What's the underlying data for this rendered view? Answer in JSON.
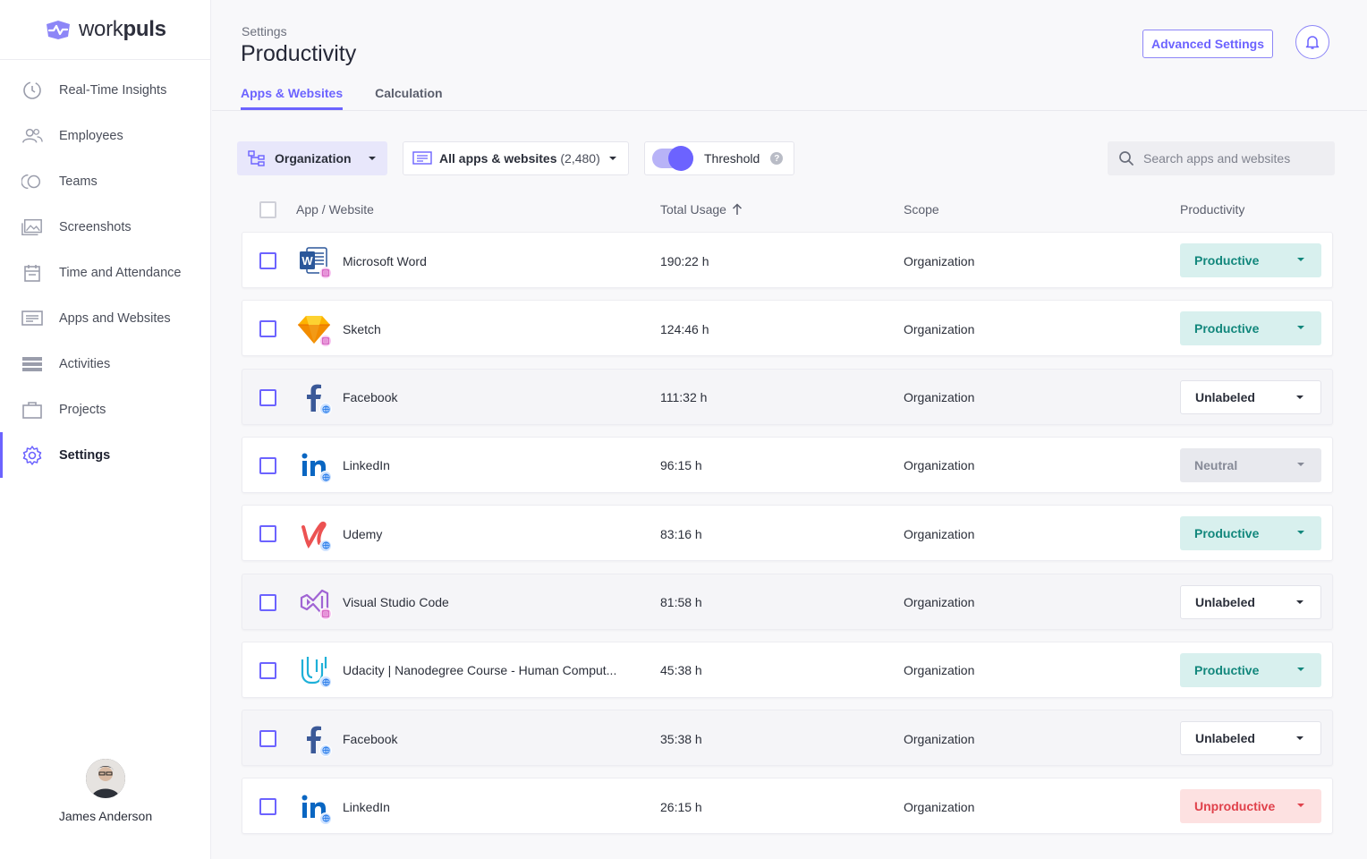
{
  "brand": {
    "name_light": "work",
    "name_bold": "puls",
    "accent": "#6c63ff"
  },
  "sidebar": {
    "items": [
      {
        "label": "Real-Time Insights",
        "icon": "clock-icon"
      },
      {
        "label": "Employees",
        "icon": "users-icon"
      },
      {
        "label": "Teams",
        "icon": "teams-icon"
      },
      {
        "label": "Screenshots",
        "icon": "image-icon"
      },
      {
        "label": "Time and Attendance",
        "icon": "calendar-icon"
      },
      {
        "label": "Apps and Websites",
        "icon": "monitor-icon"
      },
      {
        "label": "Activities",
        "icon": "list-icon"
      },
      {
        "label": "Projects",
        "icon": "briefcase-icon"
      },
      {
        "label": "Settings",
        "icon": "gear-icon",
        "active": true
      }
    ],
    "user": {
      "name": "James Anderson"
    }
  },
  "header": {
    "breadcrumb": "Settings",
    "title": "Productivity",
    "advanced_label": "Advanced Settings",
    "tabs": [
      {
        "label": "Apps & Websites",
        "active": true
      },
      {
        "label": "Calculation",
        "active": false
      }
    ]
  },
  "filters": {
    "org_label": "Organization",
    "apps_label": "All apps & websites",
    "apps_count": "(2,480)",
    "threshold_label": "Threshold",
    "threshold_on": true,
    "search_placeholder": "Search apps and websites"
  },
  "table": {
    "headers": {
      "app": "App / Website",
      "usage": "Total Usage",
      "scope": "Scope",
      "productivity": "Productivity"
    },
    "rows": [
      {
        "name": "Microsoft Word",
        "usage": "190:22 h",
        "scope": "Organization",
        "productivity": "Productive",
        "kind": "productive",
        "icon": "word-icon",
        "type": "app"
      },
      {
        "name": "Sketch",
        "usage": "124:46 h",
        "scope": "Organization",
        "productivity": "Productive",
        "kind": "productive",
        "icon": "sketch-icon",
        "type": "app"
      },
      {
        "name": "Facebook",
        "usage": "111:32 h",
        "scope": "Organization",
        "productivity": "Unlabeled",
        "kind": "unlabeled",
        "icon": "facebook-icon",
        "type": "web"
      },
      {
        "name": "LinkedIn",
        "usage": "96:15 h",
        "scope": "Organization",
        "productivity": "Neutral",
        "kind": "neutral",
        "icon": "linkedin-icon",
        "type": "web"
      },
      {
        "name": "Udemy",
        "usage": "83:16 h",
        "scope": "Organization",
        "productivity": "Productive",
        "kind": "productive",
        "icon": "udemy-icon",
        "type": "web"
      },
      {
        "name": "Visual Studio Code",
        "usage": "81:58 h",
        "scope": "Organization",
        "productivity": "Unlabeled",
        "kind": "unlabeled",
        "icon": "vscode-icon",
        "type": "app"
      },
      {
        "name": "Udacity | Nanodegree Course - Human Comput...",
        "usage": "45:38 h",
        "scope": "Organization",
        "productivity": "Productive",
        "kind": "productive",
        "icon": "udacity-icon",
        "type": "web"
      },
      {
        "name": "Facebook",
        "usage": "35:38 h",
        "scope": "Organization",
        "productivity": "Unlabeled",
        "kind": "unlabeled",
        "icon": "facebook-icon",
        "type": "web"
      },
      {
        "name": "LinkedIn",
        "usage": "26:15 h",
        "scope": "Organization",
        "productivity": "Unproductive",
        "kind": "unproductive",
        "icon": "linkedin-icon",
        "type": "web"
      }
    ]
  }
}
